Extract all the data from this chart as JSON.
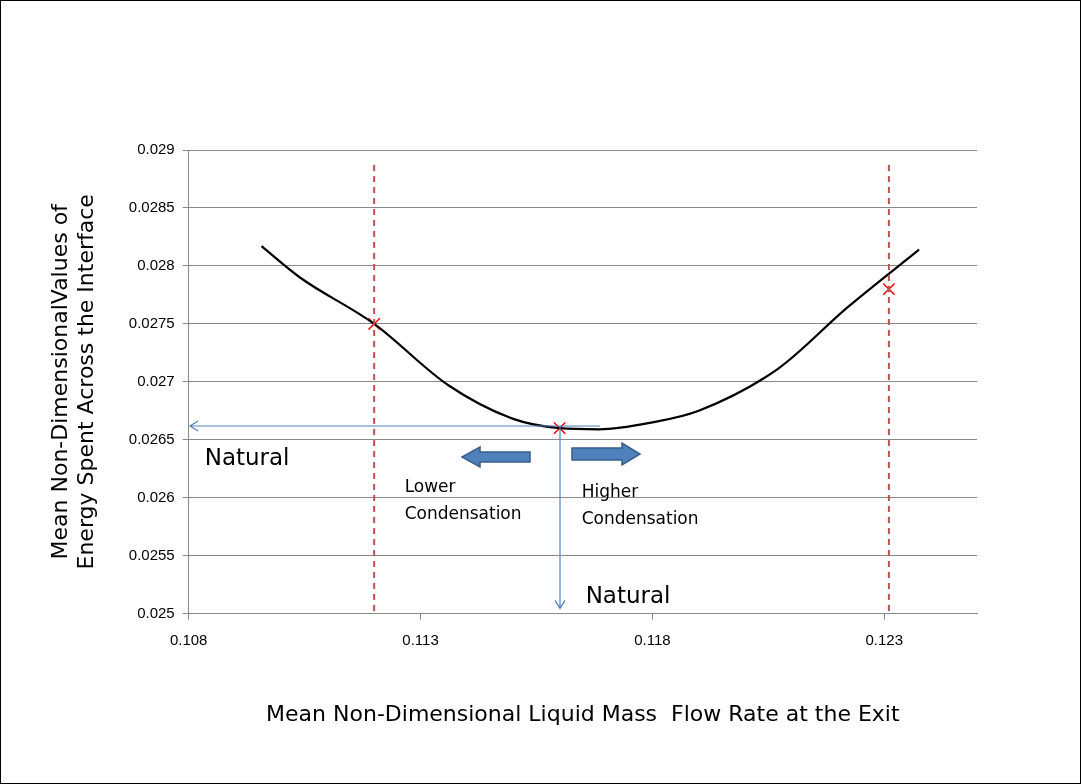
{
  "chart_data": {
    "type": "line",
    "xlabel": "Mean Non-Dimensional Liquid Mass  Flow Rate at the Exit",
    "ylabel": "Mean Non-DimensionalValues of\nEnergy Spent Across the Interface",
    "xlim": [
      0.108,
      0.125
    ],
    "xticks": [
      0.108,
      0.113,
      0.118,
      0.123
    ],
    "ylim": [
      0.025,
      0.029
    ],
    "yticks": [
      0.025,
      0.0255,
      0.026,
      0.0265,
      0.027,
      0.0275,
      0.028,
      0.0285,
      0.029
    ],
    "grid": "y",
    "legend": false,
    "series": [
      {
        "color": "#000000",
        "marker": "none",
        "x": [
          0.10957,
          0.1104,
          0.112,
          0.1136,
          0.115,
          0.116,
          0.11685,
          0.118,
          0.119,
          0.1207,
          0.1222,
          0.12375
        ],
        "values": [
          0.02817,
          0.0279,
          0.0275,
          0.02697,
          0.02668,
          0.0266,
          0.02659,
          0.02665,
          0.02675,
          0.02711,
          0.02764,
          0.02814
        ]
      },
      {
        "type": "scatter",
        "color": "#ff0000",
        "marker": "cross",
        "x": [
          0.112,
          0.116,
          0.1231
        ],
        "values": [
          0.0275,
          0.0266,
          0.0278
        ]
      }
    ],
    "ref_lines": [
      {
        "axis": "x",
        "value": 0.112,
        "color": "#c0504d",
        "line_style": "dashed"
      },
      {
        "axis": "x",
        "value": 0.1231,
        "color": "#c0504d",
        "line_style": "dashed"
      }
    ],
    "annotations": [
      "Natural",
      {
        "text": "Natural",
        "x": 0.116,
        "y": 0.0266
      },
      "Lower Condensation",
      "Higher Condensation"
    ]
  }
}
